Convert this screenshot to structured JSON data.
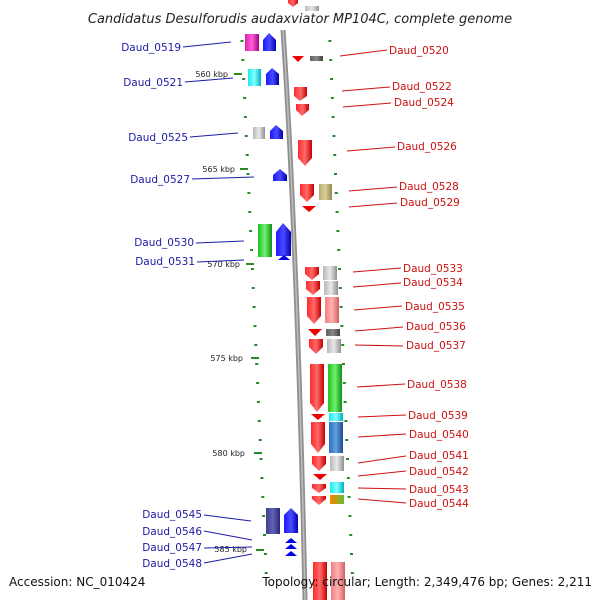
{
  "title": "Candidatus Desulforudis audaxviator MP104C, complete genome",
  "footer": {
    "accession": "Accession: NC_010424",
    "topology": "Topology: circular; Length: 2,349,476 bp; Genes: 2,211"
  },
  "colors": {
    "backbone": "#8c8c8c",
    "scale_tick": "#2a8a2a",
    "left_label": "#1c1ca8",
    "right_label": "#cc1111",
    "cds_reverse": "#0000ee",
    "cds_forward": "#ee0000"
  },
  "scale_labels": [
    {
      "text": "560 kbp"
    },
    {
      "text": "565 kbp"
    },
    {
      "text": "570 kbp"
    },
    {
      "text": "575 kbp"
    },
    {
      "text": "580 kbp"
    },
    {
      "text": "585 kbp"
    }
  ],
  "left_genes": [
    {
      "label": "Daud_0519"
    },
    {
      "label": "Daud_0521"
    },
    {
      "label": "Daud_0525"
    },
    {
      "label": "Daud_0527"
    },
    {
      "label": "Daud_0530"
    },
    {
      "label": "Daud_0531"
    },
    {
      "label": "Daud_0545"
    },
    {
      "label": "Daud_0546"
    },
    {
      "label": "Daud_0547"
    },
    {
      "label": "Daud_0548"
    }
  ],
  "right_genes": [
    {
      "label": "Daud_0520"
    },
    {
      "label": "Daud_0522"
    },
    {
      "label": "Daud_0524"
    },
    {
      "label": "Daud_0526"
    },
    {
      "label": "Daud_0528"
    },
    {
      "label": "Daud_0529"
    },
    {
      "label": "Daud_0533"
    },
    {
      "label": "Daud_0534"
    },
    {
      "label": "Daud_0535"
    },
    {
      "label": "Daud_0536"
    },
    {
      "label": "Daud_0537"
    },
    {
      "label": "Daud_0538"
    },
    {
      "label": "Daud_0539"
    },
    {
      "label": "Daud_0540"
    },
    {
      "label": "Daud_0541"
    },
    {
      "label": "Daud_0542"
    },
    {
      "label": "Daud_0543"
    },
    {
      "label": "Daud_0544"
    }
  ]
}
